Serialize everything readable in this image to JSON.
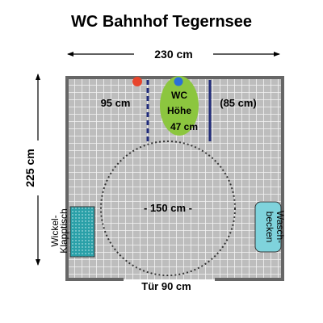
{
  "title": "WC Bahnhof Tegernsee",
  "width_label": "230 cm",
  "depth_label": "225 cm",
  "left_clearance_label": "95 cm",
  "right_clearance_label": "(85 cm)",
  "wc_label": {
    "line1": "WC",
    "line2": "Höhe",
    "line3": "47 cm"
  },
  "turning_circle_label": "- 150 cm -",
  "sink_label": {
    "line1": "Wasch-",
    "line2": "becken"
  },
  "changing_table_label": {
    "line1": "Wickel-",
    "line2": "Klapptisch"
  },
  "door_label": "Tür 90 cm",
  "colors": {
    "floor": "#bdbdbd",
    "tile_grid": "#f2f2f2",
    "wall": "#666666",
    "wc": "#8cc63f",
    "alarm_button": "#e8452c",
    "flush_button": "#2c6fd6",
    "grab_bar": "#1f2a7a",
    "changing_table": "#2aa0a8",
    "sink": "#7fd3dc"
  }
}
